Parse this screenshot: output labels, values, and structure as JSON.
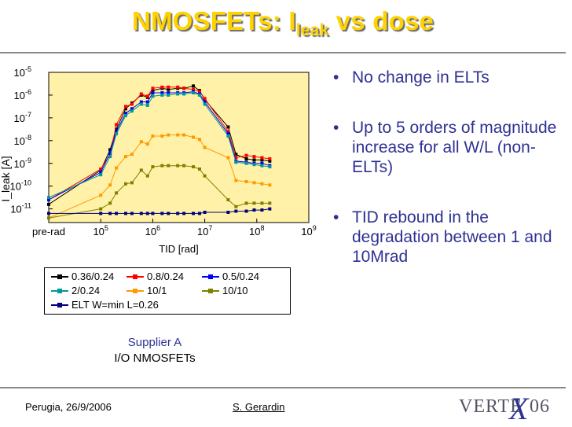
{
  "slide": {
    "title_main": "NMOSFETs: I",
    "title_sub": "leak",
    "title_rest": " vs dose"
  },
  "bullets": [
    "No change in ELTs",
    "Up to 5 orders of magnitude increase for all W/L (non-ELTs)",
    "TID rebound in the degradation between 1 and 10Mrad"
  ],
  "caption": {
    "line1": "Supplier A",
    "line2": "I/O NMOSFETs"
  },
  "footer": {
    "left": "Perugia, 26/9/2006",
    "center": "S. Gerardin",
    "logo_left": "VERTE",
    "logo_x": "X",
    "logo_right": "06"
  },
  "colors": {
    "title": "#ffd200",
    "bullet_text": "#2e3192",
    "plot_bg": "#fff2a8"
  },
  "chart_data": {
    "type": "line",
    "title": "",
    "xlabel": "TID [rad]",
    "ylabel": "I_leak [A]",
    "x_scale": "log",
    "y_scale": "log",
    "xlim": [
      4,
      9
    ],
    "ylim": [
      -11.6,
      -5
    ],
    "x_ticks": [
      {
        "value": 4,
        "label": "pre-rad"
      },
      {
        "value": 5,
        "base": "10",
        "exp": "5"
      },
      {
        "value": 6,
        "base": "10",
        "exp": "6"
      },
      {
        "value": 7,
        "base": "10",
        "exp": "7"
      },
      {
        "value": 8,
        "base": "10",
        "exp": "8"
      },
      {
        "value": 9,
        "base": "10",
        "exp": "9"
      }
    ],
    "y_ticks": [
      {
        "value": -5,
        "base": "10",
        "exp": "-5"
      },
      {
        "value": -6,
        "base": "10",
        "exp": "-6"
      },
      {
        "value": -7,
        "base": "10",
        "exp": "-7"
      },
      {
        "value": -8,
        "base": "10",
        "exp": "-8"
      },
      {
        "value": -9,
        "base": "10",
        "exp": "-9"
      },
      {
        "value": -10,
        "base": "10",
        "exp": "-10"
      },
      {
        "value": -11,
        "base": "10",
        "exp": "-11"
      }
    ],
    "x": [
      4,
      5,
      5.18,
      5.3,
      5.48,
      5.6,
      5.78,
      5.9,
      6,
      6.18,
      6.3,
      6.48,
      6.6,
      6.78,
      6.9,
      7,
      7.45,
      7.6,
      7.8,
      7.95,
      8.1,
      8.25
    ],
    "series": [
      {
        "name": "0.36/0.24",
        "color": "#000000",
        "marker": "square",
        "values": [
          -10.8,
          -9.3,
          -8.4,
          -7.5,
          -6.6,
          -6.35,
          -6.0,
          -6.1,
          -5.8,
          -5.7,
          -5.75,
          -5.7,
          -5.7,
          -5.6,
          -5.8,
          -6.2,
          -7.4,
          -8.6,
          -8.8,
          -8.85,
          -8.85,
          -8.9
        ]
      },
      {
        "name": "0.8/0.24",
        "color": "#ff0000",
        "marker": "square",
        "values": [
          -10.6,
          -9.25,
          -8.6,
          -7.3,
          -6.5,
          -6.4,
          -5.95,
          -6.05,
          -5.7,
          -5.65,
          -5.65,
          -5.65,
          -5.7,
          -5.75,
          -5.85,
          -6.15,
          -7.6,
          -8.75,
          -8.65,
          -8.7,
          -8.75,
          -8.8
        ]
      },
      {
        "name": "0.5/0.24",
        "color": "#0000ff",
        "marker": "square",
        "values": [
          -10.6,
          -9.4,
          -8.55,
          -7.6,
          -6.8,
          -6.6,
          -6.3,
          -6.3,
          -5.9,
          -5.9,
          -5.9,
          -5.9,
          -5.9,
          -5.85,
          -5.95,
          -6.3,
          -7.7,
          -8.9,
          -8.95,
          -9.0,
          -9.0,
          -9.1
        ]
      },
      {
        "name": "2/0.24",
        "color": "#009999",
        "marker": "square",
        "values": [
          -10.5,
          -9.5,
          -8.7,
          -7.7,
          -6.9,
          -6.7,
          -6.4,
          -6.45,
          -6.05,
          -6.0,
          -6.0,
          -5.95,
          -5.95,
          -5.9,
          -6.0,
          -6.4,
          -7.8,
          -8.95,
          -9.0,
          -9.05,
          -9.1,
          -9.15
        ]
      },
      {
        "name": "10/1",
        "color": "#ff9900",
        "marker": "square",
        "values": [
          -11.4,
          -10.4,
          -9.95,
          -9.2,
          -8.7,
          -8.6,
          -8.05,
          -8.15,
          -7.8,
          -7.8,
          -7.75,
          -7.75,
          -7.75,
          -7.85,
          -7.95,
          -8.3,
          -8.75,
          -9.75,
          -9.8,
          -9.85,
          -9.9,
          -9.95
        ]
      },
      {
        "name": "10/10",
        "color": "#808000",
        "marker": "square",
        "values": [
          -11.4,
          -11.0,
          -10.75,
          -10.3,
          -9.9,
          -9.85,
          -9.3,
          -9.55,
          -9.15,
          -9.1,
          -9.1,
          -9.1,
          -9.1,
          -9.15,
          -9.25,
          -9.55,
          -10.6,
          -10.9,
          -10.75,
          -10.75,
          -10.75,
          -10.75
        ]
      },
      {
        "name": "ELT W=min L=0.26",
        "color": "#000080",
        "marker": "square",
        "values": [
          -11.2,
          -11.2,
          -11.2,
          -11.2,
          -11.2,
          -11.2,
          -11.2,
          -11.2,
          -11.2,
          -11.2,
          -11.2,
          -11.2,
          -11.2,
          -11.2,
          -11.2,
          -11.15,
          -11.15,
          -11.1,
          -11.1,
          -11.05,
          -11.05,
          -11.0
        ]
      }
    ],
    "legend": {
      "placement": "below-plot",
      "columns": 3
    }
  }
}
